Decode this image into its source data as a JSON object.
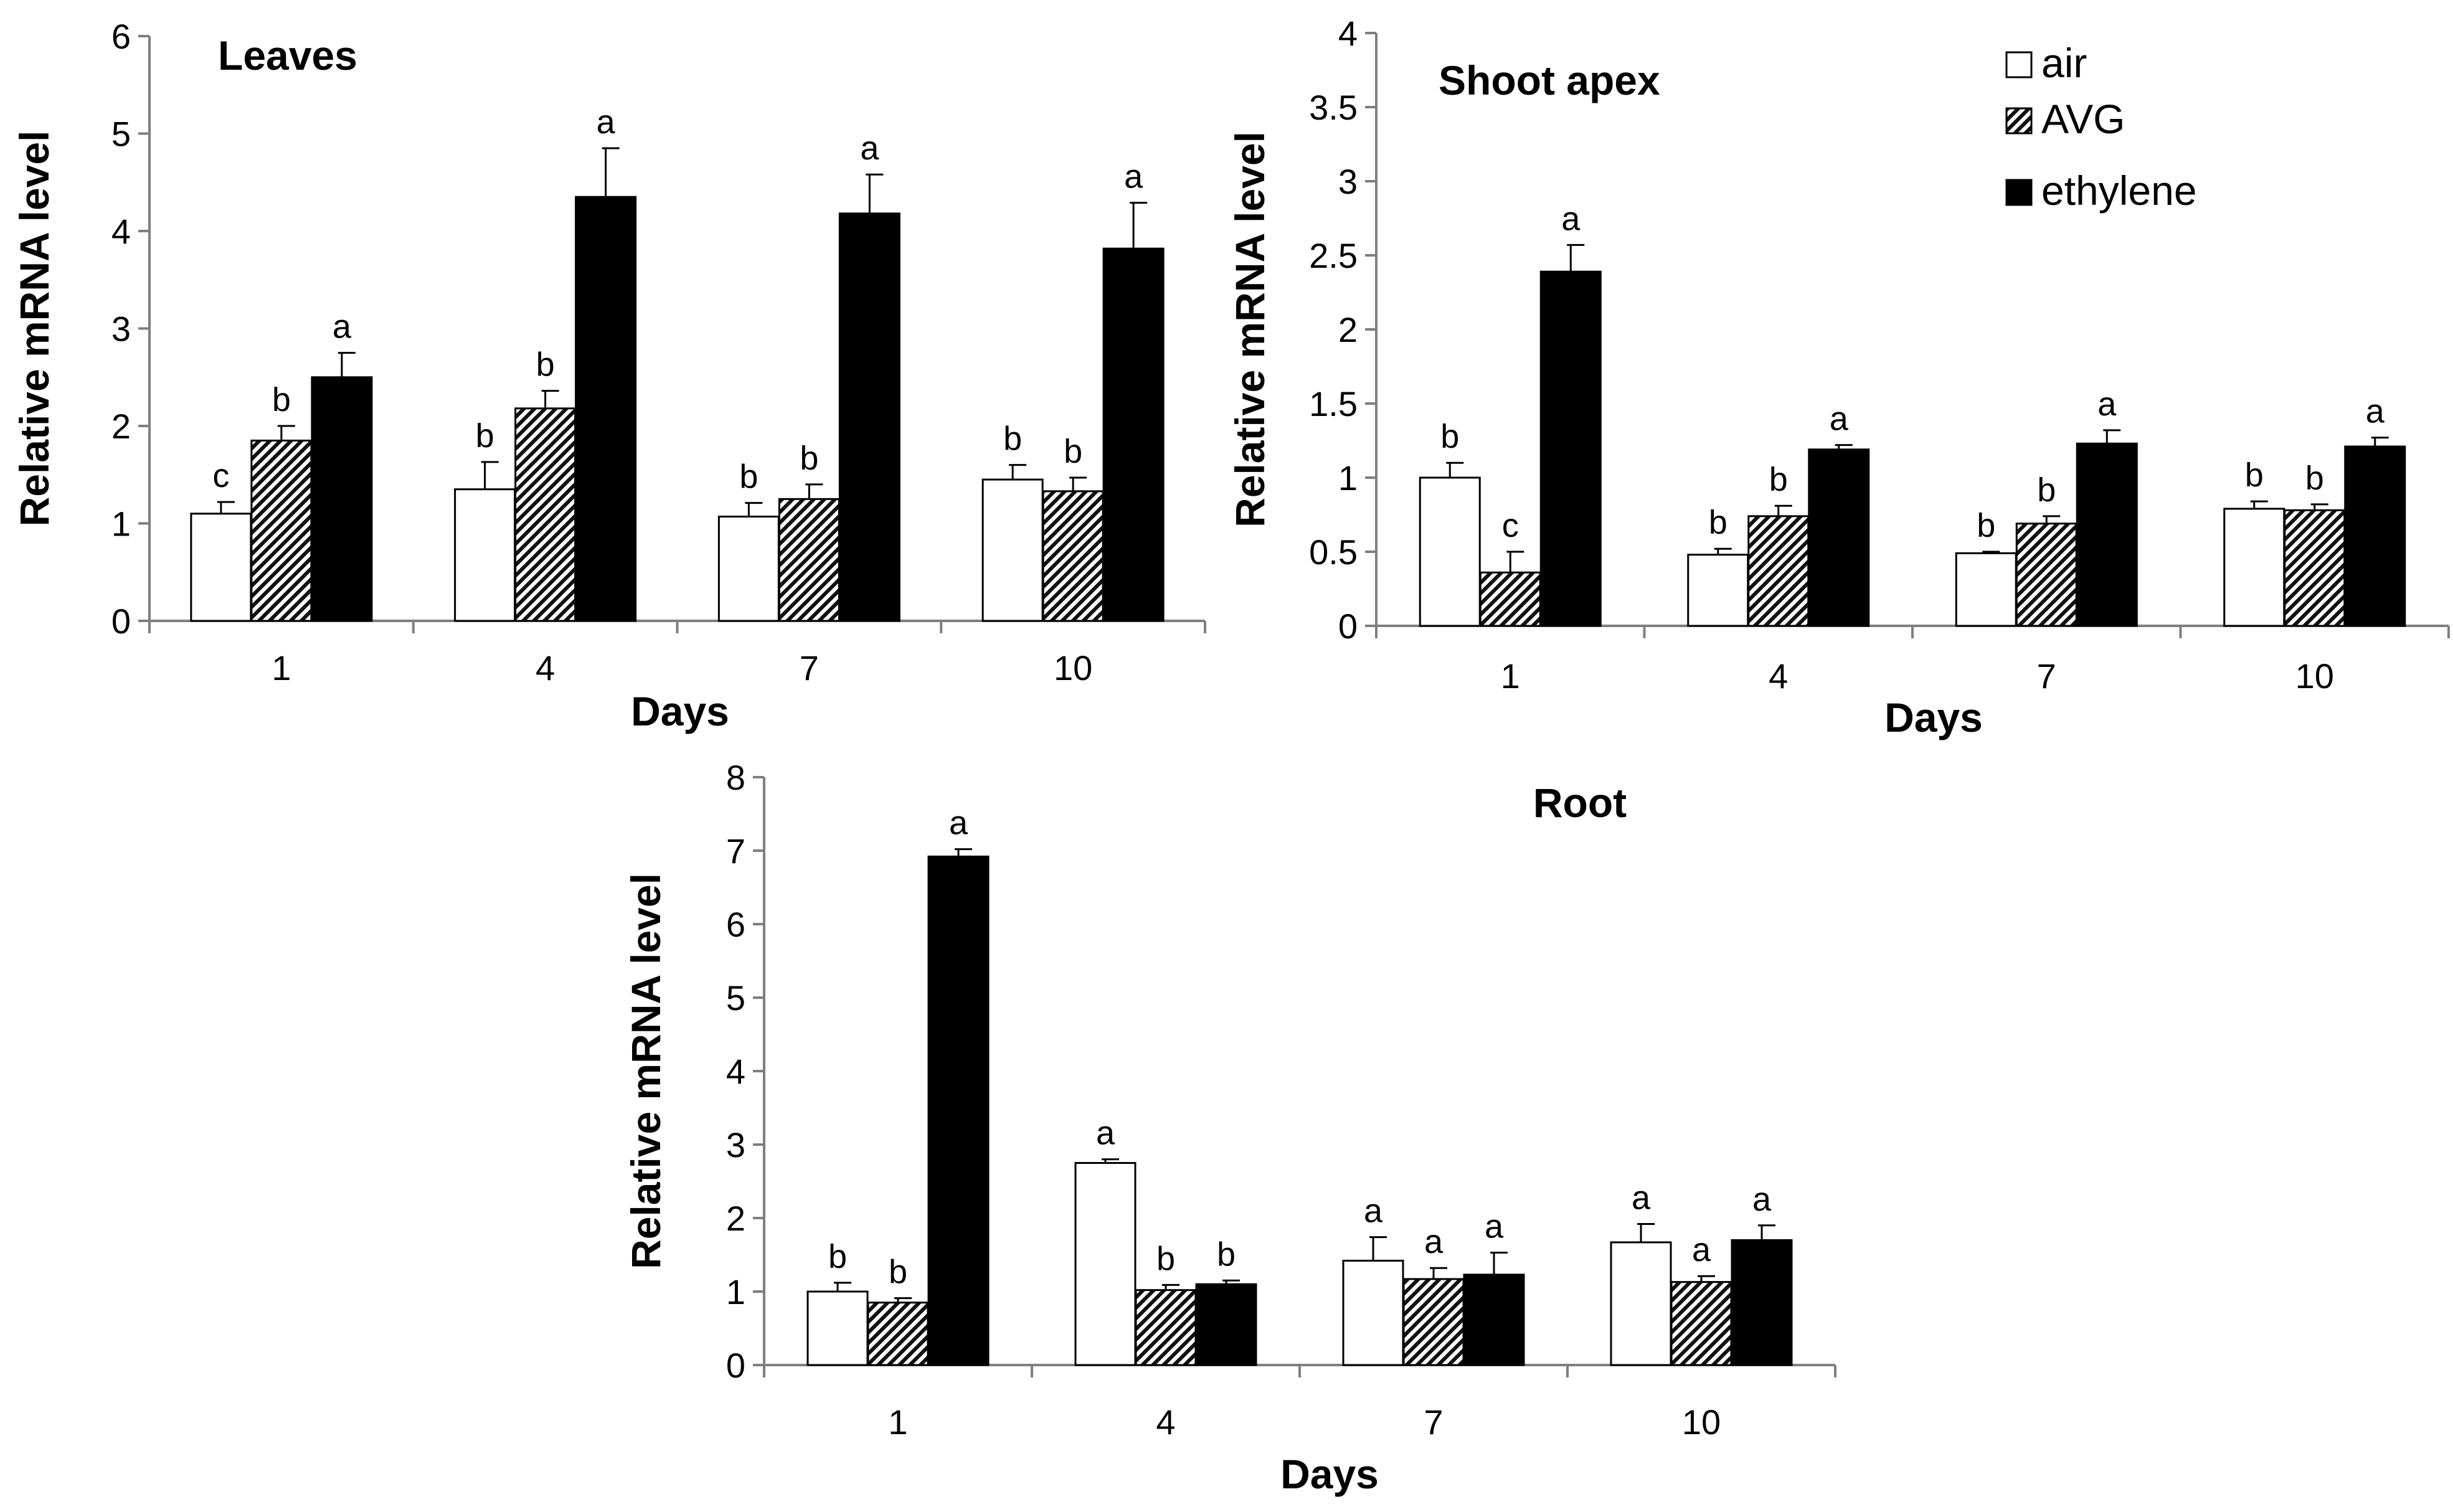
{
  "chart_data": [
    {
      "type": "bar",
      "title": "Leaves",
      "xlabel": "Days",
      "ylabel": "Relative mRNA level",
      "categories": [
        "1",
        "4",
        "7",
        "10"
      ],
      "ylim": [
        0,
        6
      ],
      "yticks": [
        "0",
        "1",
        "2",
        "3",
        "4",
        "5",
        "6"
      ],
      "series": [
        {
          "name": "air",
          "values": [
            1.1,
            1.35,
            1.07,
            1.45
          ],
          "errors": [
            0.12,
            0.28,
            0.14,
            0.15
          ],
          "labels": [
            "c",
            "b",
            "b",
            "b"
          ]
        },
        {
          "name": "AVG",
          "values": [
            1.85,
            2.18,
            1.25,
            1.33
          ],
          "errors": [
            0.15,
            0.18,
            0.15,
            0.14
          ],
          "labels": [
            "b",
            "b",
            "b",
            "b"
          ]
        },
        {
          "name": "ethylene",
          "values": [
            2.5,
            4.35,
            4.18,
            3.82
          ],
          "errors": [
            0.25,
            0.5,
            0.4,
            0.47
          ],
          "labels": [
            "a",
            "a",
            "a",
            "a"
          ]
        }
      ]
    },
    {
      "type": "bar",
      "title": "Shoot apex",
      "xlabel": "Days",
      "ylabel": "Relative mRNA level",
      "categories": [
        "1",
        "4",
        "7",
        "10"
      ],
      "ylim": [
        0,
        4
      ],
      "yticks": [
        "0",
        "0.5",
        "1",
        "1.5",
        "2",
        "2.5",
        "3",
        "3.5",
        "4"
      ],
      "series": [
        {
          "name": "air",
          "values": [
            1.0,
            0.48,
            0.49,
            0.79
          ],
          "errors": [
            0.1,
            0.04,
            0.01,
            0.05
          ],
          "labels": [
            "b",
            "b",
            "b",
            "b"
          ]
        },
        {
          "name": "AVG",
          "values": [
            0.36,
            0.74,
            0.69,
            0.78
          ],
          "errors": [
            0.14,
            0.07,
            0.05,
            0.04
          ],
          "labels": [
            "c",
            "b",
            "b",
            "b"
          ]
        },
        {
          "name": "ethylene",
          "values": [
            2.39,
            1.19,
            1.23,
            1.21
          ],
          "errors": [
            0.18,
            0.03,
            0.09,
            0.06
          ],
          "labels": [
            "a",
            "a",
            "a",
            "a"
          ]
        }
      ]
    },
    {
      "type": "bar",
      "title": "Root",
      "xlabel": "Days",
      "ylabel": "Relative mRNA level",
      "categories": [
        "1",
        "4",
        "7",
        "10"
      ],
      "ylim": [
        0,
        8
      ],
      "yticks": [
        "0",
        "1",
        "2",
        "3",
        "4",
        "5",
        "6",
        "7",
        "8"
      ],
      "series": [
        {
          "name": "air",
          "values": [
            1.0,
            2.75,
            1.42,
            1.67
          ],
          "errors": [
            0.12,
            0.05,
            0.32,
            0.25
          ],
          "labels": [
            "b",
            "a",
            "a",
            "a"
          ]
        },
        {
          "name": "AVG",
          "values": [
            0.85,
            1.02,
            1.17,
            1.13
          ],
          "errors": [
            0.06,
            0.07,
            0.15,
            0.08
          ],
          "labels": [
            "b",
            "b",
            "a",
            "a"
          ]
        },
        {
          "name": "ethylene",
          "values": [
            6.92,
            1.1,
            1.23,
            1.7
          ],
          "errors": [
            0.1,
            0.05,
            0.3,
            0.2
          ],
          "labels": [
            "a",
            "b",
            "a",
            "a"
          ]
        }
      ]
    }
  ],
  "legend": {
    "position": "top-right",
    "items": [
      {
        "name": "air",
        "fill": "#ffffff"
      },
      {
        "name": "AVG",
        "fill": "hatch"
      },
      {
        "name": "ethylene",
        "fill": "#000000"
      }
    ]
  },
  "colors": {
    "bar_edge": "#000000",
    "ethylene": "#000000",
    "air": "#ffffff",
    "axis": "#7f7f7f"
  }
}
